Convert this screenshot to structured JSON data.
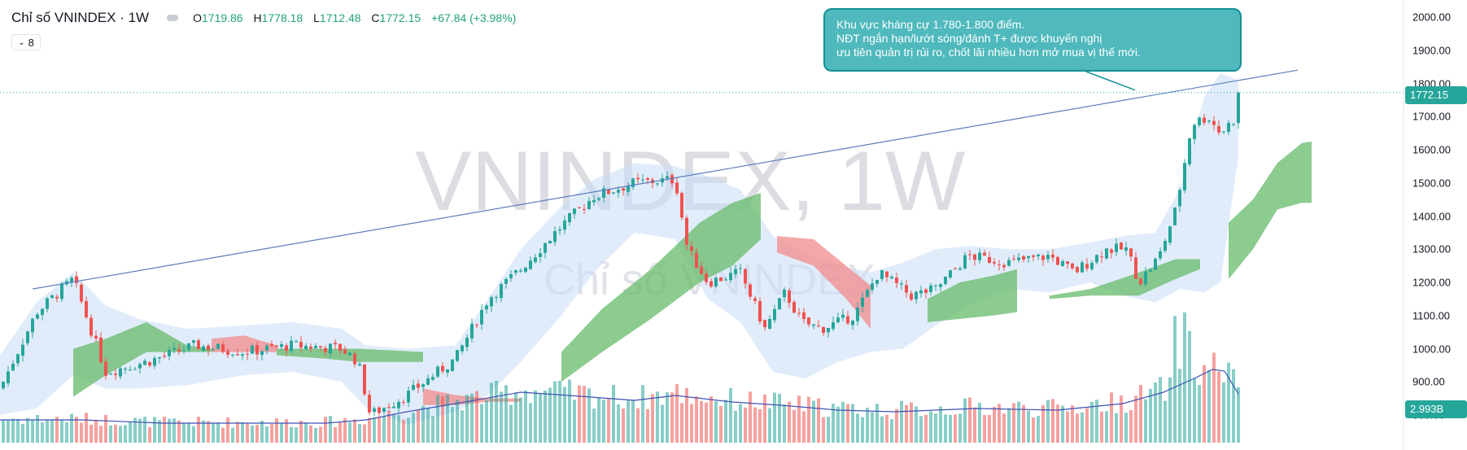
{
  "header": {
    "title": "Chỉ số VNINDEX · 1W",
    "open_label": "O",
    "open": "1719.86",
    "high_label": "H",
    "high": "1778.18",
    "low_label": "L",
    "low": "1712.48",
    "close_label": "C",
    "close": "1772.15",
    "change": "+67.84 (+3.98%)"
  },
  "indicator_toggle": {
    "value": "8"
  },
  "annotation": {
    "line1": "Khu vực kháng cự 1.780-1.800 điểm.",
    "line2": "NĐT ngắn hạn/lướt sóng/đánh T+ được khuyến nghị",
    "line3": "ưu tiên quản trị rủi ro, chốt lãi nhiều hơn mở mua vị thế mới."
  },
  "watermark": {
    "symbol": "VNINDEX, 1W",
    "name": "Chỉ số VNINDEX"
  },
  "colors": {
    "up": "#26a69a",
    "down": "#ef5350",
    "cloud_up": "#66bb6a",
    "cloud_down": "#f28b8b",
    "bollinger": "#c9dcf8",
    "trend_line": "#5b7dbd",
    "volume_ma": "#3f51b5",
    "annotation_bg": "#4fb9bd"
  },
  "chart_data": {
    "type": "candlestick",
    "title": "Chỉ số VNINDEX · 1W",
    "y_axis": {
      "ticks": [
        "2000.00",
        "1900.00",
        "1800.00",
        "1700.00",
        "1600.00",
        "1500.00",
        "1400.00",
        "1300.00",
        "1200.00",
        "1100.00",
        "1000.00",
        "900.00",
        "800.00"
      ],
      "range": [
        785,
        2030
      ]
    },
    "last_price": {
      "label": "1772.15",
      "value": 1772.15
    },
    "last_volume": {
      "label": "2.993B"
    },
    "price_keypoints": [
      [
        0,
        880
      ],
      [
        45,
        1110
      ],
      [
        90,
        1210
      ],
      [
        130,
        930
      ],
      [
        180,
        960
      ],
      [
        240,
        1010
      ],
      [
        300,
        990
      ],
      [
        360,
        1010
      ],
      [
        420,
        1000
      ],
      [
        440,
        960
      ],
      [
        455,
        800
      ],
      [
        500,
        860
      ],
      [
        560,
        970
      ],
      [
        600,
        1150
      ],
      [
        640,
        1240
      ],
      [
        690,
        1370
      ],
      [
        730,
        1460
      ],
      [
        780,
        1500
      ],
      [
        830,
        1510
      ],
      [
        845,
        1300
      ],
      [
        870,
        1200
      ],
      [
        910,
        1230
      ],
      [
        940,
        1060
      ],
      [
        965,
        1170
      ],
      [
        985,
        1080
      ],
      [
        1010,
        1060
      ],
      [
        1050,
        1100
      ],
      [
        1080,
        1230
      ],
      [
        1120,
        1160
      ],
      [
        1150,
        1180
      ],
      [
        1190,
        1280
      ],
      [
        1240,
        1260
      ],
      [
        1290,
        1280
      ],
      [
        1320,
        1230
      ],
      [
        1360,
        1300
      ],
      [
        1385,
        1300
      ],
      [
        1400,
        1200
      ],
      [
        1425,
        1280
      ],
      [
        1445,
        1420
      ],
      [
        1465,
        1680
      ],
      [
        1485,
        1700
      ],
      [
        1500,
        1650
      ],
      [
        1520,
        1700
      ],
      [
        1523,
        1772
      ]
    ],
    "cloud_segments": [
      {
        "color": "green",
        "upper": [
          [
            90,
            1000
          ],
          [
            130,
            1030
          ],
          [
            180,
            1080
          ],
          [
            230,
            1010
          ],
          [
            260,
            1000
          ]
        ],
        "lower": [
          [
            90,
            855
          ],
          [
            130,
            920
          ],
          [
            180,
            990
          ],
          [
            230,
            990
          ],
          [
            260,
            990
          ]
        ]
      },
      {
        "color": "red",
        "upper": [
          [
            260,
            1030
          ],
          [
            300,
            1040
          ],
          [
            340,
            1010
          ]
        ],
        "lower": [
          [
            260,
            990
          ],
          [
            300,
            990
          ],
          [
            340,
            990
          ]
        ]
      },
      {
        "color": "green",
        "upper": [
          [
            340,
            1000
          ],
          [
            400,
            1000
          ],
          [
            440,
            1000
          ],
          [
            520,
            990
          ]
        ],
        "lower": [
          [
            340,
            980
          ],
          [
            400,
            970
          ],
          [
            440,
            960
          ],
          [
            520,
            960
          ]
        ]
      },
      {
        "color": "red",
        "upper": [
          [
            520,
            880
          ],
          [
            560,
            860
          ],
          [
            600,
            850
          ],
          [
            640,
            850
          ]
        ],
        "lower": [
          [
            520,
            830
          ],
          [
            560,
            830
          ],
          [
            600,
            840
          ],
          [
            640,
            840
          ]
        ]
      },
      {
        "color": "green",
        "upper": [
          [
            690,
            990
          ],
          [
            740,
            1120
          ],
          [
            800,
            1240
          ],
          [
            860,
            1380
          ],
          [
            900,
            1440
          ],
          [
            935,
            1470
          ]
        ],
        "lower": [
          [
            690,
            900
          ],
          [
            740,
            990
          ],
          [
            800,
            1090
          ],
          [
            860,
            1200
          ],
          [
            900,
            1250
          ],
          [
            935,
            1330
          ]
        ]
      },
      {
        "color": "red",
        "upper": [
          [
            955,
            1340
          ],
          [
            1000,
            1330
          ],
          [
            1040,
            1250
          ],
          [
            1070,
            1190
          ]
        ],
        "lower": [
          [
            955,
            1290
          ],
          [
            1000,
            1250
          ],
          [
            1040,
            1150
          ],
          [
            1070,
            1060
          ]
        ]
      },
      {
        "color": "green",
        "upper": [
          [
            1140,
            1150
          ],
          [
            1180,
            1200
          ],
          [
            1220,
            1220
          ],
          [
            1250,
            1240
          ]
        ],
        "lower": [
          [
            1140,
            1080
          ],
          [
            1180,
            1090
          ],
          [
            1220,
            1100
          ],
          [
            1250,
            1110
          ]
        ]
      },
      {
        "color": "green",
        "upper": [
          [
            1290,
            1160
          ],
          [
            1340,
            1180
          ],
          [
            1400,
            1230
          ],
          [
            1445,
            1270
          ],
          [
            1475,
            1270
          ]
        ],
        "lower": [
          [
            1290,
            1150
          ],
          [
            1340,
            1160
          ],
          [
            1400,
            1160
          ],
          [
            1445,
            1210
          ],
          [
            1475,
            1240
          ]
        ]
      },
      {
        "color": "green",
        "upper": [
          [
            1510,
            1380
          ],
          [
            1540,
            1450
          ],
          [
            1570,
            1560
          ],
          [
            1600,
            1620
          ],
          [
            1612,
            1625
          ]
        ],
        "lower": [
          [
            1510,
            1210
          ],
          [
            1540,
            1300
          ],
          [
            1570,
            1420
          ],
          [
            1600,
            1440
          ],
          [
            1612,
            1440
          ]
        ]
      }
    ],
    "bollinger": {
      "upper": [
        [
          0,
          980
        ],
        [
          45,
          1140
        ],
        [
          90,
          1230
        ],
        [
          130,
          1130
        ],
        [
          170,
          1090
        ],
        [
          230,
          1060
        ],
        [
          300,
          1070
        ],
        [
          360,
          1080
        ],
        [
          420,
          1060
        ],
        [
          450,
          1010
        ],
        [
          500,
          1000
        ],
        [
          560,
          1010
        ],
        [
          600,
          1150
        ],
        [
          640,
          1300
        ],
        [
          690,
          1430
        ],
        [
          730,
          1510
        ],
        [
          780,
          1560
        ],
        [
          830,
          1550
        ],
        [
          870,
          1520
        ],
        [
          910,
          1480
        ],
        [
          950,
          1340
        ],
        [
          990,
          1290
        ],
        [
          1030,
          1250
        ],
        [
          1070,
          1230
        ],
        [
          1110,
          1260
        ],
        [
          1150,
          1300
        ],
        [
          1190,
          1310
        ],
        [
          1240,
          1300
        ],
        [
          1290,
          1300
        ],
        [
          1340,
          1320
        ],
        [
          1380,
          1340
        ],
        [
          1420,
          1350
        ],
        [
          1450,
          1480
        ],
        [
          1480,
          1760
        ],
        [
          1500,
          1830
        ],
        [
          1522,
          1810
        ]
      ],
      "lower": [
        [
          0,
          800
        ],
        [
          45,
          820
        ],
        [
          90,
          920
        ],
        [
          130,
          880
        ],
        [
          170,
          880
        ],
        [
          230,
          890
        ],
        [
          300,
          920
        ],
        [
          360,
          930
        ],
        [
          420,
          900
        ],
        [
          450,
          820
        ],
        [
          500,
          770
        ],
        [
          560,
          810
        ],
        [
          600,
          860
        ],
        [
          640,
          960
        ],
        [
          690,
          1100
        ],
        [
          730,
          1230
        ],
        [
          780,
          1350
        ],
        [
          830,
          1330
        ],
        [
          870,
          1150
        ],
        [
          910,
          1080
        ],
        [
          950,
          930
        ],
        [
          990,
          910
        ],
        [
          1030,
          960
        ],
        [
          1070,
          990
        ],
        [
          1110,
          1000
        ],
        [
          1150,
          1070
        ],
        [
          1190,
          1130
        ],
        [
          1240,
          1180
        ],
        [
          1290,
          1170
        ],
        [
          1340,
          1200
        ],
        [
          1380,
          1160
        ],
        [
          1420,
          1140
        ],
        [
          1450,
          1180
        ],
        [
          1480,
          1170
        ],
        [
          1500,
          1200
        ],
        [
          1522,
          1580
        ]
      ]
    },
    "trendline": {
      "start": [
        40,
        1180
      ],
      "end": [
        1595,
        1840
      ]
    },
    "volume_ma": [
      [
        0,
        28
      ],
      [
        100,
        28
      ],
      [
        200,
        24
      ],
      [
        300,
        24
      ],
      [
        400,
        24
      ],
      [
        450,
        28
      ],
      [
        500,
        38
      ],
      [
        560,
        48
      ],
      [
        640,
        62
      ],
      [
        700,
        58
      ],
      [
        780,
        52
      ],
      [
        830,
        58
      ],
      [
        900,
        50
      ],
      [
        960,
        46
      ],
      [
        1030,
        40
      ],
      [
        1100,
        38
      ],
      [
        1200,
        42
      ],
      [
        1300,
        40
      ],
      [
        1380,
        48
      ],
      [
        1430,
        62
      ],
      [
        1470,
        80
      ],
      [
        1490,
        90
      ],
      [
        1505,
        88
      ],
      [
        1522,
        60
      ]
    ]
  }
}
